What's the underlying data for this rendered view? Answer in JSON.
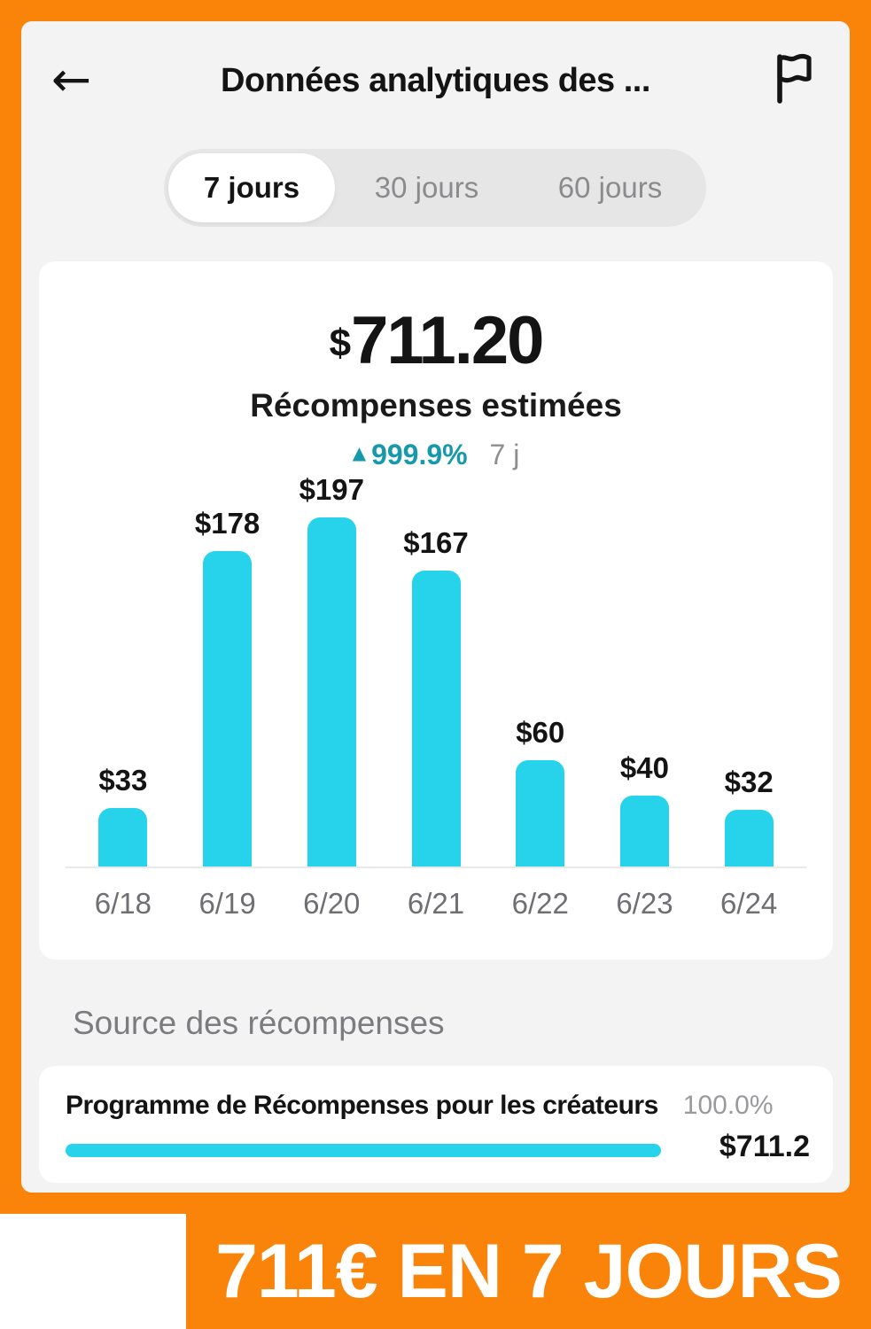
{
  "colors": {
    "orange": "#F98409",
    "cyan": "#27D3EA",
    "teal": "#1799AC",
    "app_bg": "#F3F3F4",
    "card_bg": "#FFFFFF"
  },
  "header": {
    "back_icon": "←",
    "title": "Données analytiques des ...",
    "flag_icon": "flag"
  },
  "tabs": {
    "items": [
      {
        "label": "7 jours",
        "selected": true
      },
      {
        "label": "30 jours",
        "selected": false
      },
      {
        "label": "60 jours",
        "selected": false
      }
    ]
  },
  "summary": {
    "currency": "$",
    "amount": "711.20",
    "label": "Récompenses estimées",
    "change_arrow": "▲",
    "change": "999.9%",
    "period": "7 j"
  },
  "chart_data": {
    "type": "bar",
    "title": "Récompenses estimées — $711.20 (7 jours)",
    "categories": [
      "6/18",
      "6/19",
      "6/20",
      "6/21",
      "6/22",
      "6/23",
      "6/24"
    ],
    "values": [
      33,
      178,
      197,
      167,
      60,
      40,
      32
    ],
    "value_labels": [
      "$33",
      "$178",
      "$197",
      "$167",
      "$60",
      "$40",
      "$32"
    ],
    "xlabel": "",
    "ylabel": "",
    "ylim": [
      0,
      220
    ],
    "grid": false,
    "legend": "none",
    "bar_color": "#27D3EA"
  },
  "source": {
    "heading": "Source des récompenses",
    "program": "Programme de Récompenses pour les créateurs",
    "percent": "100.0%",
    "amount": "$711.2",
    "progress_pct": 100
  },
  "banner": {
    "text": "711€ EN 7 JOURS"
  }
}
